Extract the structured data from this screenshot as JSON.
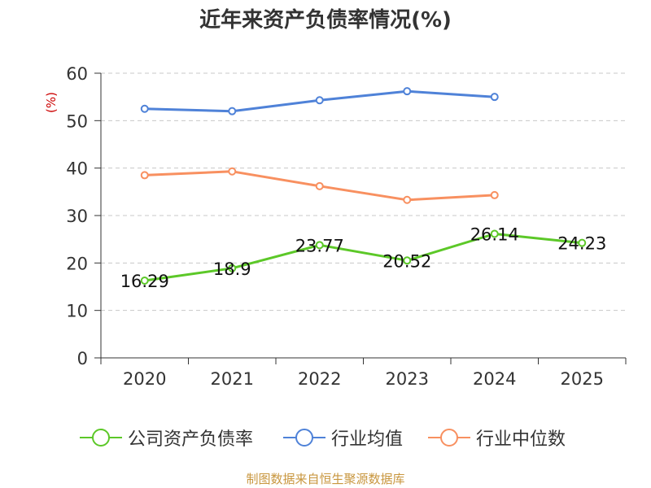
{
  "chart_data": {
    "type": "line",
    "title": "近年来资产负债率情况(%)",
    "ylabel": "(%)",
    "categories": [
      "2020",
      "2021",
      "2022",
      "2023",
      "2024",
      "2025"
    ],
    "ylim": [
      0,
      60
    ],
    "yticks": [
      0,
      10,
      20,
      30,
      40,
      50,
      60
    ],
    "grid": true,
    "legend_position": "bottom",
    "series": [
      {
        "name": "公司资产负债率",
        "color": "#5cc828",
        "show_labels": true,
        "values": [
          16.29,
          18.9,
          23.77,
          20.52,
          26.14,
          24.23
        ]
      },
      {
        "name": "行业均值",
        "color": "#4f82d8",
        "show_labels": false,
        "values": [
          52.5,
          52.0,
          54.3,
          56.2,
          55.0,
          null
        ]
      },
      {
        "name": "行业中位数",
        "color": "#f89060",
        "show_labels": false,
        "values": [
          38.5,
          39.3,
          36.2,
          33.3,
          34.3,
          null
        ]
      }
    ],
    "source": "制图数据来自恒生聚源数据库"
  }
}
